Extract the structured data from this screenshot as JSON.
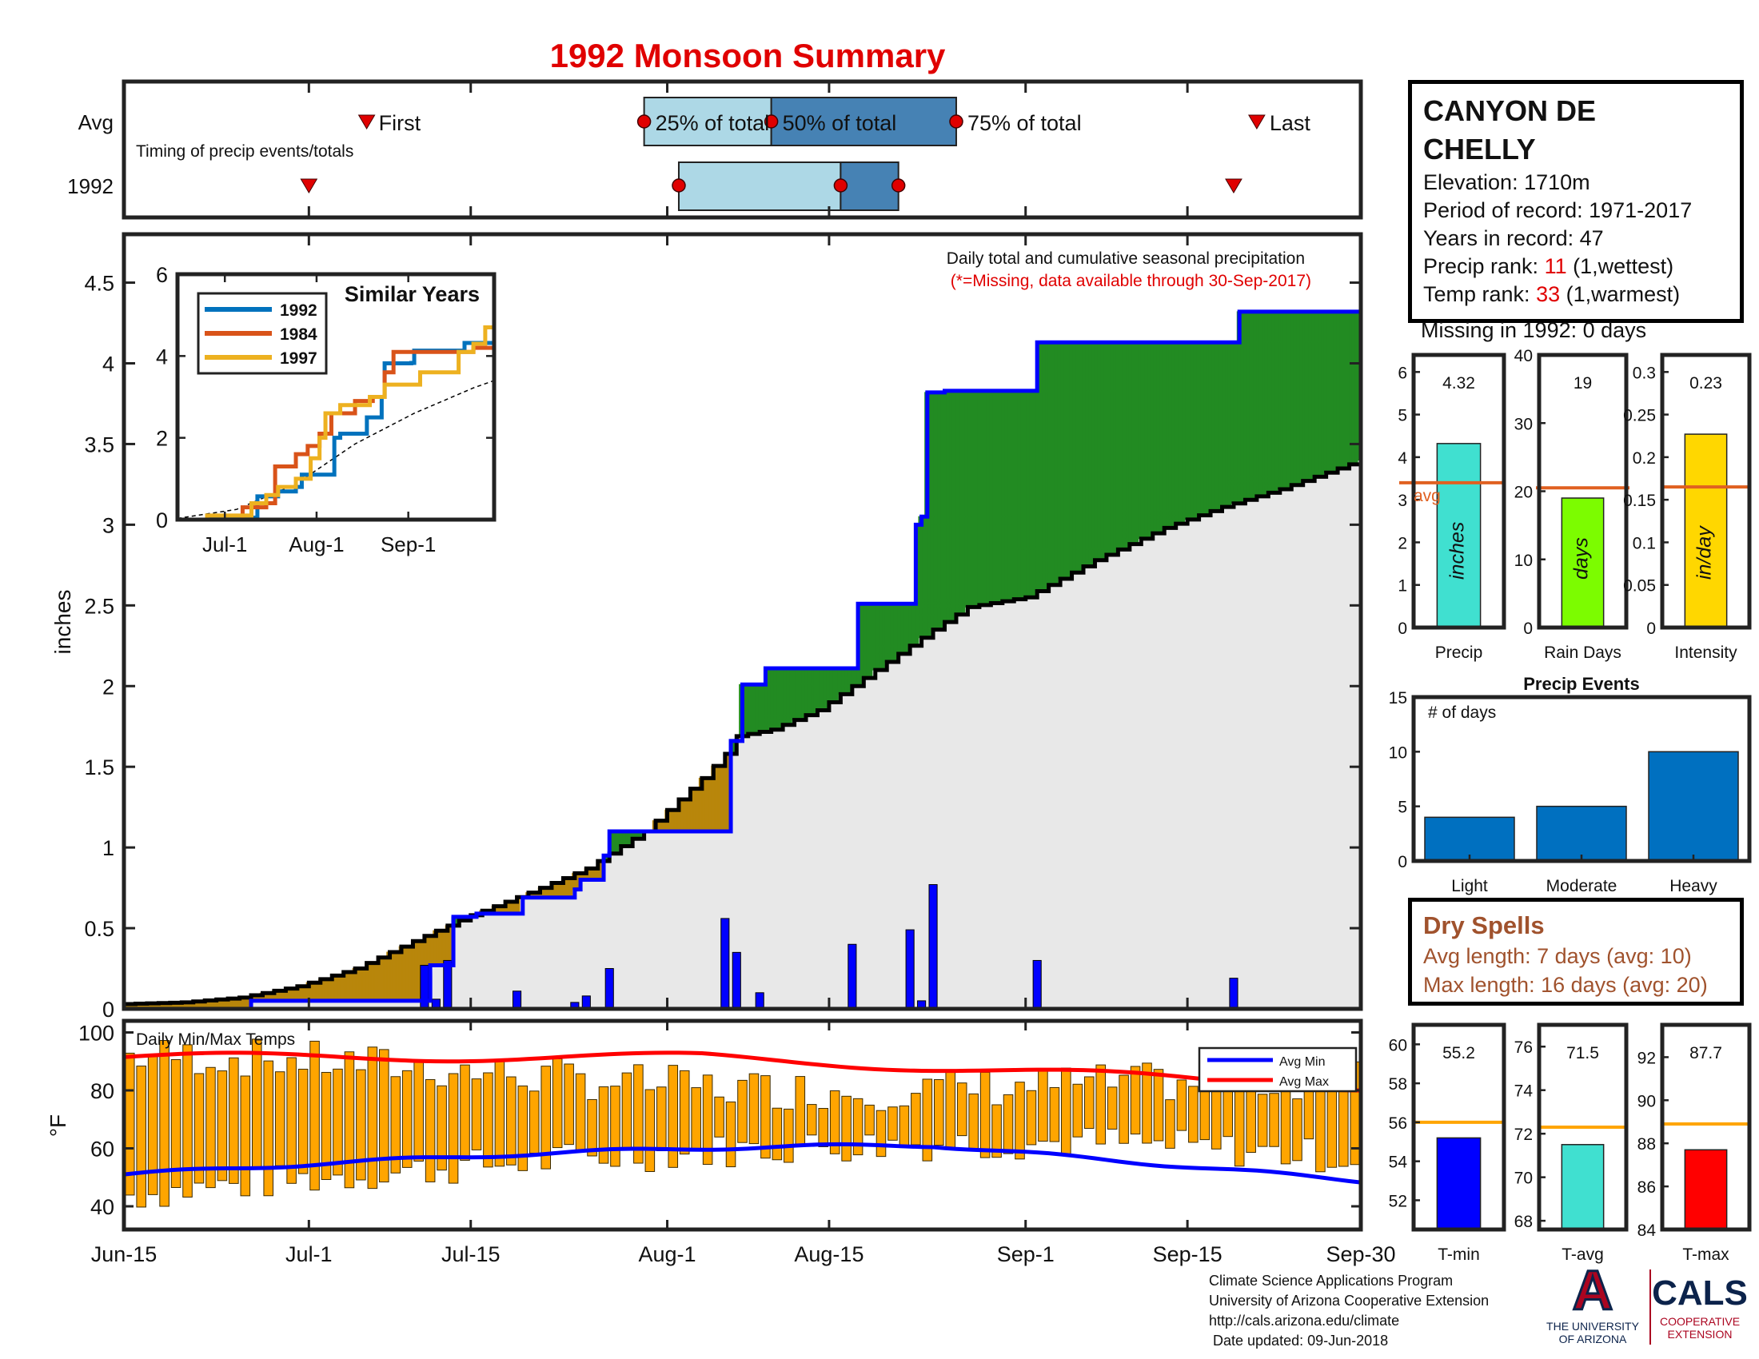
{
  "title": "1992 Monsoon Summary",
  "colors": {
    "title_red": "#e00000",
    "observed_line": "#0000ff",
    "average_line": "#000000",
    "surplus_fill": "#228b22",
    "deficit_fill": "#b8860b",
    "background_fill": "#e8e8e8",
    "daily_bar": "#0000ff",
    "temp_bar": "#ffa500",
    "avg_min": "#0000ff",
    "avg_max": "#ff0000",
    "precip_bar": "#40e0d0",
    "raindays_bar": "#7cfc00",
    "intensity_bar": "#ffd700",
    "avg_ref": "#e06020",
    "event_bar": "#0070c0",
    "dry_text": "#a0522d"
  },
  "station": {
    "name": "CANYON DE\nCHELLY",
    "elevation": "Elevation: 1710m",
    "period": "Period of record: 1971-2017",
    "years": "Years in record: 47",
    "precip_rank_label": "Precip rank:",
    "precip_rank_value": "11",
    "precip_rank_note": "(1,wettest)",
    "temp_rank_label": "Temp rank:",
    "temp_rank_value": "33",
    "temp_rank_note": "(1,warmest)",
    "missing": "Missing in 1992: 0 days"
  },
  "dry_spells": {
    "title": "Dry Spells",
    "avg": "Avg length: 7 days (avg: 10)",
    "max": "Max length: 16 days (avg: 20)"
  },
  "credits": {
    "line1": "Climate Science Applications Program",
    "line2": "University of Arizona Cooperative Extension",
    "line3": "http://cals.arizona.edu/climate",
    "line4": " Date updated: 09-Jun-2018"
  },
  "logo": {
    "a_letter": "A",
    "ua_line1": "THE UNIVERSITY",
    "ua_line2": "OF ARIZONA",
    "cals": "CALS",
    "cals_line1": "COOPERATIVE",
    "cals_line2": "EXTENSION"
  },
  "chart_data": [
    {
      "id": "timing",
      "type": "timeline",
      "rows": [
        "Avg",
        "1992"
      ],
      "note": "Timing of precip events/totals",
      "labels": {
        "first": "First",
        "q25": "25% of total",
        "q50": "50% of total",
        "q75": "75% of total",
        "last": "Last"
      },
      "avg": {
        "first": 21,
        "q25": 45,
        "q50": 56,
        "q75": 72,
        "last": 98
      },
      "y1992": {
        "first": 16,
        "q25": 48,
        "q50": 62,
        "q75": 67,
        "last": 96
      },
      "x_days_from": "Jun-15"
    },
    {
      "id": "precip",
      "type": "area",
      "title": "Daily total and cumulative seasonal precipitation",
      "subtitle": "(*=Missing, data available through 30-Sep-2017)",
      "ylabel": "inches",
      "ylim": [
        0,
        4.8
      ],
      "yticks": [
        0,
        0.5,
        1,
        1.5,
        2,
        2.5,
        3,
        3.5,
        4,
        4.5
      ],
      "xticks": [
        {
          "label": "Jun-15",
          "day": 0
        },
        {
          "label": "Jul-1",
          "day": 16
        },
        {
          "label": "Jul-15",
          "day": 30
        },
        {
          "label": "Aug-1",
          "day": 47
        },
        {
          "label": "Aug-15",
          "day": 61
        },
        {
          "label": "Sep-1",
          "day": 78
        },
        {
          "label": "Sep-15",
          "day": 92
        },
        {
          "label": "Sep-30",
          "day": 107
        }
      ],
      "cum_1992": [
        [
          0,
          0
        ],
        [
          11,
          0.05
        ],
        [
          26,
          0.05
        ],
        [
          26.5,
          0.27
        ],
        [
          28,
          0.27
        ],
        [
          28.5,
          0.57
        ],
        [
          30,
          0.57
        ],
        [
          30.5,
          0.59
        ],
        [
          34,
          0.59
        ],
        [
          34.5,
          0.69
        ],
        [
          38.5,
          0.69
        ],
        [
          39,
          0.74
        ],
        [
          39.5,
          0.8
        ],
        [
          41,
          0.8
        ],
        [
          41.5,
          0.95
        ],
        [
          42,
          1.1
        ],
        [
          52,
          1.1
        ],
        [
          52.5,
          1.66
        ],
        [
          53.5,
          2.01
        ],
        [
          55,
          2.01
        ],
        [
          55.5,
          2.11
        ],
        [
          63,
          2.11
        ],
        [
          63.5,
          2.51
        ],
        [
          68,
          2.51
        ],
        [
          68.5,
          3.0
        ],
        [
          69,
          3.05
        ],
        [
          69.5,
          3.82
        ],
        [
          71,
          3.83
        ],
        [
          78.5,
          3.83
        ],
        [
          79,
          4.13
        ],
        [
          96,
          4.13
        ],
        [
          96.5,
          4.32
        ],
        [
          107,
          4.32
        ]
      ],
      "cum_avg_points": [
        [
          0,
          0.03
        ],
        [
          5,
          0.04
        ],
        [
          10,
          0.07
        ],
        [
          15,
          0.14
        ],
        [
          20,
          0.25
        ],
        [
          25,
          0.42
        ],
        [
          30,
          0.58
        ],
        [
          35,
          0.72
        ],
        [
          40,
          0.87
        ],
        [
          45,
          1.1
        ],
        [
          50,
          1.43
        ],
        [
          52,
          1.58
        ],
        [
          53,
          1.69
        ],
        [
          56,
          1.73
        ],
        [
          60,
          1.85
        ],
        [
          65,
          2.1
        ],
        [
          70,
          2.35
        ],
        [
          73,
          2.49
        ],
        [
          78,
          2.55
        ],
        [
          84,
          2.78
        ],
        [
          90,
          2.98
        ],
        [
          95,
          3.11
        ],
        [
          100,
          3.22
        ],
        [
          107,
          3.4
        ]
      ],
      "daily_bars": [
        {
          "day": 26,
          "value": 0.27
        },
        {
          "day": 27,
          "value": 0.06
        },
        {
          "day": 28,
          "value": 0.3
        },
        {
          "day": 34,
          "value": 0.11
        },
        {
          "day": 39,
          "value": 0.04
        },
        {
          "day": 40,
          "value": 0.08
        },
        {
          "day": 42,
          "value": 0.25
        },
        {
          "day": 52,
          "value": 0.56
        },
        {
          "day": 53,
          "value": 0.35
        },
        {
          "day": 55,
          "value": 0.1
        },
        {
          "day": 63,
          "value": 0.4
        },
        {
          "day": 68,
          "value": 0.49
        },
        {
          "day": 69,
          "value": 0.05
        },
        {
          "day": 70,
          "value": 0.77
        },
        {
          "day": 79,
          "value": 0.3
        },
        {
          "day": 96,
          "value": 0.19
        }
      ]
    },
    {
      "id": "similar",
      "type": "line",
      "title": "Similar Years",
      "ylim": [
        0,
        6
      ],
      "yticks": [
        0,
        2,
        4,
        6
      ],
      "xticks": [
        {
          "label": "Jul-1",
          "day": 16
        },
        {
          "label": "Aug-1",
          "day": 47
        },
        {
          "label": "Sep-1",
          "day": 78
        }
      ],
      "series": [
        {
          "name": "1992",
          "color": "#0072bd",
          "points": [
            [
              0,
              0
            ],
            [
              11,
              0.05
            ],
            [
              26,
              0.05
            ],
            [
              27,
              0.57
            ],
            [
              34,
              0.69
            ],
            [
              40,
              0.8
            ],
            [
              42,
              1.1
            ],
            [
              52,
              1.1
            ],
            [
              53,
              2.0
            ],
            [
              55,
              2.1
            ],
            [
              63,
              2.1
            ],
            [
              64,
              2.5
            ],
            [
              68,
              2.5
            ],
            [
              69,
              3.0
            ],
            [
              70,
              3.82
            ],
            [
              79,
              3.83
            ],
            [
              80,
              4.13
            ],
            [
              96,
              4.13
            ],
            [
              97,
              4.32
            ],
            [
              107,
              4.32
            ]
          ]
        },
        {
          "name": "1984",
          "color": "#d95319",
          "points": [
            [
              0,
              0
            ],
            [
              20,
              0.0
            ],
            [
              22,
              0.3
            ],
            [
              30,
              0.4
            ],
            [
              33,
              1.3
            ],
            [
              38,
              1.3
            ],
            [
              40,
              1.6
            ],
            [
              44,
              1.8
            ],
            [
              48,
              2.1
            ],
            [
              52,
              2.6
            ],
            [
              56,
              2.6
            ],
            [
              60,
              2.9
            ],
            [
              66,
              3.0
            ],
            [
              70,
              3.6
            ],
            [
              73,
              4.1
            ],
            [
              90,
              4.1
            ],
            [
              100,
              4.2
            ],
            [
              107,
              4.2
            ]
          ]
        },
        {
          "name": "1997",
          "color": "#edb120",
          "points": [
            [
              0,
              0
            ],
            [
              10,
              0.1
            ],
            [
              18,
              0.1
            ],
            [
              25,
              0.4
            ],
            [
              30,
              0.6
            ],
            [
              34,
              0.8
            ],
            [
              40,
              1.0
            ],
            [
              45,
              1.5
            ],
            [
              48,
              2.0
            ],
            [
              50,
              2.6
            ],
            [
              55,
              2.8
            ],
            [
              60,
              2.8
            ],
            [
              65,
              3.0
            ],
            [
              70,
              3.3
            ],
            [
              77,
              3.3
            ],
            [
              82,
              3.6
            ],
            [
              90,
              3.6
            ],
            [
              95,
              4.1
            ],
            [
              100,
              4.3
            ],
            [
              104,
              4.7
            ],
            [
              107,
              4.8
            ]
          ]
        }
      ],
      "average_dashed": [
        [
          0,
          0.03
        ],
        [
          20,
          0.25
        ],
        [
          40,
          0.87
        ],
        [
          60,
          1.85
        ],
        [
          80,
          2.6
        ],
        [
          100,
          3.22
        ],
        [
          107,
          3.4
        ]
      ]
    },
    {
      "id": "temps",
      "type": "bar",
      "title": "Daily Min/Max Temps",
      "ylabel": "°F",
      "ylim": [
        32,
        104
      ],
      "yticks": [
        40,
        60,
        80,
        100
      ],
      "legend": [
        "Avg Min",
        "Avg Max"
      ]
    },
    {
      "id": "precip_box",
      "type": "bar",
      "xlabel": "Precip",
      "value": 4.32,
      "value_label": "4.32",
      "avg": 3.4,
      "avg_label": "avg",
      "unit": "inches",
      "ylim": [
        0,
        6.4
      ],
      "yticks": [
        0,
        1,
        2,
        3,
        4,
        5,
        6
      ]
    },
    {
      "id": "raindays_box",
      "type": "bar",
      "xlabel": "Rain Days",
      "value": 19,
      "value_label": "19",
      "avg": 20.5,
      "unit": "days",
      "ylim": [
        0,
        40
      ],
      "yticks": [
        0,
        10,
        20,
        30,
        40
      ]
    },
    {
      "id": "intensity_box",
      "type": "bar",
      "xlabel": "Intensity",
      "value": 0.227,
      "value_label": "0.23",
      "avg": 0.165,
      "unit": "in/day",
      "ylim": [
        0,
        0.32
      ],
      "yticks": [
        0,
        0.05,
        0.1,
        0.15,
        0.2,
        0.25,
        0.3
      ],
      "ytick_labels": [
        "0",
        "0.05",
        "0.1",
        "0.15",
        "0.2",
        "0.25",
        "0.3"
      ]
    },
    {
      "id": "events",
      "type": "bar",
      "title": "Precip Events",
      "note": "# of days",
      "categories": [
        "Light",
        "Moderate",
        "Heavy"
      ],
      "values": [
        4,
        5,
        10
      ],
      "ylim": [
        0,
        15
      ],
      "yticks": [
        0,
        5,
        10,
        15
      ]
    },
    {
      "id": "tmin_box",
      "type": "bar",
      "xlabel": "T-min",
      "value": 55.2,
      "value_label": "55.2",
      "avg": 56.0,
      "ylim": [
        50.5,
        61
      ],
      "yticks": [
        52,
        54,
        56,
        58,
        60
      ]
    },
    {
      "id": "tavg_box",
      "type": "bar",
      "xlabel": "T-avg",
      "value": 71.5,
      "value_label": "71.5",
      "avg": 72.3,
      "ylim": [
        67.6,
        77
      ],
      "yticks": [
        68,
        70,
        72,
        74,
        76
      ]
    },
    {
      "id": "tmax_box",
      "type": "bar",
      "xlabel": "T-max",
      "value": 87.7,
      "value_label": "87.7",
      "avg": 88.9,
      "ylim": [
        84,
        93.5
      ],
      "yticks": [
        84,
        86,
        88,
        90,
        92
      ]
    }
  ]
}
